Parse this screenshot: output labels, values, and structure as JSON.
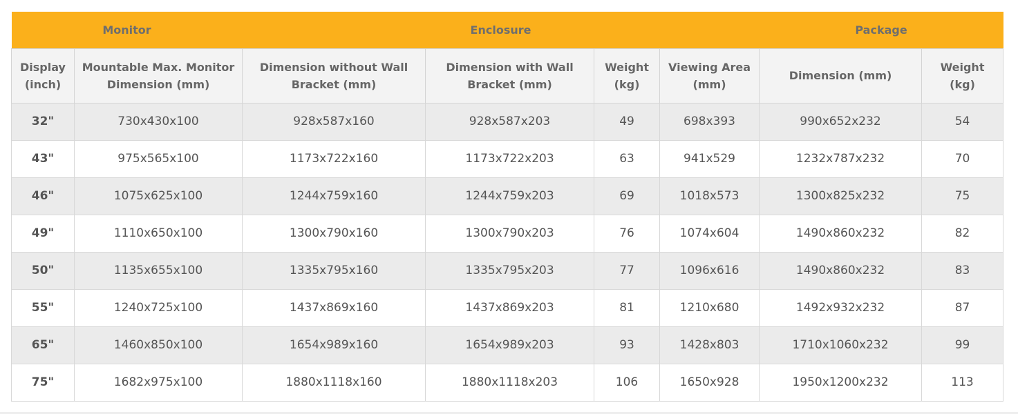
{
  "table": {
    "groups": [
      "Monitor",
      "Enclosure",
      "Package"
    ],
    "headers": [
      "Display (inch)",
      "Mountable Max. Monitor Dimension (mm)",
      "Dimension without Wall Bracket (mm)",
      "Dimension with Wall Bracket (mm)",
      "Weight (kg)",
      "Viewing Area (mm)",
      "Dimension (mm)",
      "Weight (kg)"
    ],
    "rows": [
      [
        "32\"",
        "730x430x100",
        "928x587x160",
        "928x587x203",
        "49",
        "698x393",
        "990x652x232",
        "54"
      ],
      [
        "43\"",
        "975x565x100",
        "1173x722x160",
        "1173x722x203",
        "63",
        "941x529",
        "1232x787x232",
        "70"
      ],
      [
        "46\"",
        "1075x625x100",
        "1244x759x160",
        "1244x759x203",
        "69",
        "1018x573",
        "1300x825x232",
        "75"
      ],
      [
        "49\"",
        "1110x650x100",
        "1300x790x160",
        "1300x790x203",
        "76",
        "1074x604",
        "1490x860x232",
        "82"
      ],
      [
        "50\"",
        "1135x655x100",
        "1335x795x160",
        "1335x795x203",
        "77",
        "1096x616",
        "1490x860x232",
        "83"
      ],
      [
        "55\"",
        "1240x725x100",
        "1437x869x160",
        "1437x869x203",
        "81",
        "1210x680",
        "1492x932x232",
        "87"
      ],
      [
        "65\"",
        "1460x850x100",
        "1654x989x160",
        "1654x989x203",
        "93",
        "1428x803",
        "1710x1060x232",
        "99"
      ],
      [
        "75\"",
        "1682x975x100",
        "1880x1118x160",
        "1880x1118x203",
        "106",
        "1650x928",
        "1950x1200x232",
        "113"
      ]
    ]
  }
}
